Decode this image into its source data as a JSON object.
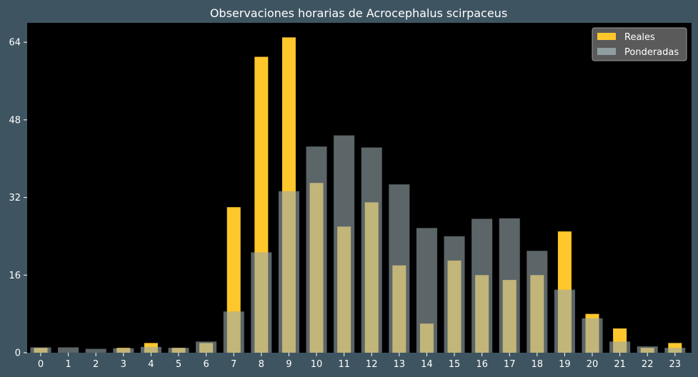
{
  "chart_data": {
    "type": "bar",
    "title": "Observaciones horarias de Acrocephalus scirpaceus",
    "xlabel": "",
    "ylabel": "",
    "categories": [
      "0",
      "1",
      "2",
      "3",
      "4",
      "5",
      "6",
      "7",
      "8",
      "9",
      "10",
      "11",
      "12",
      "13",
      "14",
      "15",
      "16",
      "17",
      "18",
      "19",
      "20",
      "21",
      "22",
      "23"
    ],
    "series": [
      {
        "name": "Reales",
        "color": "#ffc72c",
        "values": [
          1,
          0,
          0,
          1,
          2,
          1,
          2,
          30,
          61,
          65,
          35,
          26,
          31,
          18,
          6,
          19,
          16,
          15,
          16,
          25,
          8,
          5,
          1,
          2
        ]
      },
      {
        "name": "Ponderadas",
        "color": "#9aa9ae",
        "values": [
          1.1,
          1.1,
          0.8,
          0.9,
          1.2,
          1.0,
          2.3,
          8.5,
          20.7,
          33.3,
          42.5,
          44.8,
          42.3,
          34.7,
          25.7,
          24.0,
          27.6,
          27.7,
          21.0,
          13.0,
          7.1,
          2.3,
          1.3,
          1.0
        ]
      }
    ],
    "ylim": [
      0,
      68
    ],
    "yticks": [
      0,
      16,
      32,
      48,
      64
    ],
    "grid": false,
    "legend": "top-right",
    "background": "#000000",
    "figure_background": "#3e5461"
  }
}
